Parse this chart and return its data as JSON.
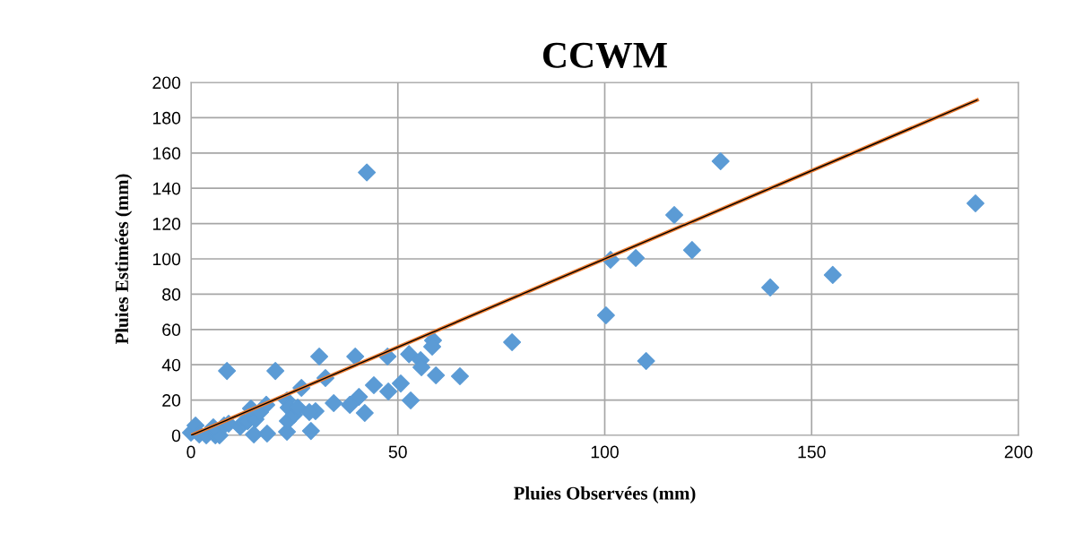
{
  "chart_data": {
    "type": "scatter",
    "title": "CCWM",
    "xlabel": "Pluies Observées (mm)",
    "ylabel": "Pluies Estimées (mm)",
    "xlim": [
      0,
      200
    ],
    "xticks": [
      0,
      50,
      100,
      150,
      200
    ],
    "ylim": [
      0,
      200
    ],
    "yticks": [
      0,
      20,
      40,
      60,
      80,
      100,
      120,
      140,
      160,
      180,
      200
    ],
    "grid": true,
    "series": [
      {
        "color": "#5b9bd5",
        "marker": "diamond",
        "x": [
          0,
          1.1,
          2,
          3.7,
          5.9,
          6.9,
          5.4,
          8,
          9.1,
          11.9,
          12.8,
          13.7,
          14.5,
          15.2,
          15.6,
          16.7,
          18.2,
          18.4,
          23.2,
          23.4,
          23.2,
          23.6,
          24.9,
          25.8,
          8.7,
          20.4,
          31,
          39.7,
          42.5,
          47.5,
          52.7,
          58.5,
          58.3,
          55.5,
          55.7,
          50.7,
          47.7,
          44.2,
          42,
          40.6,
          38.4,
          34.5,
          32.5,
          26.7,
          30.1,
          28.6,
          29,
          53.1,
          59.2,
          65,
          77.6,
          100.3,
          101.4,
          107.5,
          110,
          116.8,
          121.1,
          128,
          140,
          155.1,
          189.6
        ],
        "values": [
          1.5,
          5.6,
          0.5,
          0,
          0,
          0,
          4.6,
          5.6,
          6.6,
          5,
          7.6,
          8,
          15.2,
          0.5,
          9.1,
          13.2,
          17.3,
          1,
          2,
          8.1,
          19.8,
          15.7,
          11.7,
          15.7,
          36.5,
          36.5,
          44.7,
          44.7,
          149,
          44.7,
          46,
          53.8,
          50.3,
          42.6,
          38.6,
          29.4,
          24.9,
          28.4,
          12.7,
          21.8,
          17.3,
          18.3,
          32.5,
          26.9,
          13.7,
          13.2,
          2.5,
          19.8,
          34,
          33.5,
          52.8,
          68,
          99.5,
          100.5,
          42.1,
          124.9,
          105,
          155.3,
          83.8,
          90.9,
          131.5
        ]
      },
      {
        "type": "line",
        "color": "#ed7d31",
        "marker": "none",
        "x": [
          0,
          190
        ],
        "values": [
          0,
          190
        ]
      }
    ]
  }
}
